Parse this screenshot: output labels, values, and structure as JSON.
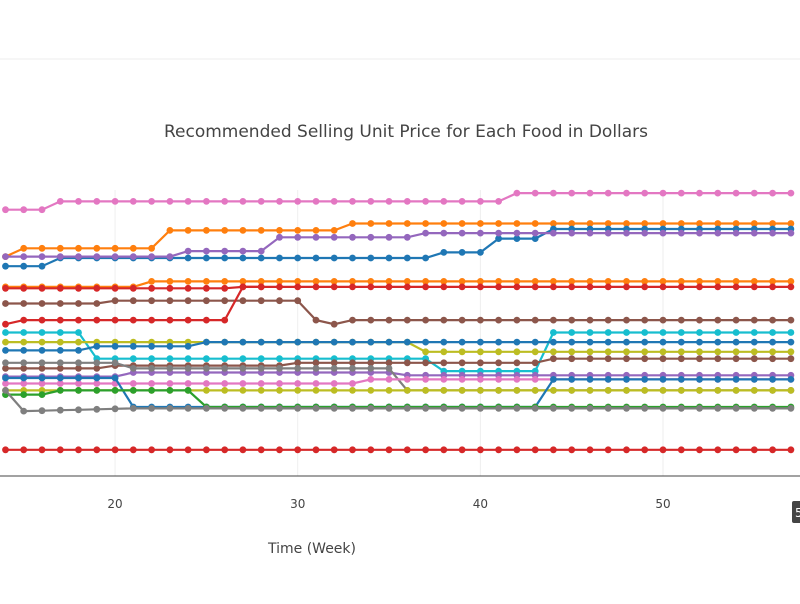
{
  "chart_data": {
    "type": "line",
    "title": "Recommended Selling Unit Price for Each Food in Dollars",
    "xlabel": "Time (Week)",
    "ylabel": "",
    "x_ticks": [
      20,
      30,
      40,
      50
    ],
    "xlim": [
      13.7,
      57.5
    ],
    "ylim": [
      0,
      100
    ],
    "grid": true,
    "hover_label": "5",
    "colors": {
      "blue": "#1f77b4",
      "orange": "#ff7f0e",
      "green": "#2ca02c",
      "red": "#d62728",
      "purple": "#9467bd",
      "brown": "#8c564b",
      "pink": "#e377c2",
      "gray": "#7f7f7f",
      "olive": "#bcbd22",
      "cyan": "#17becf"
    },
    "series": [
      {
        "color": "pink",
        "segments": [
          [
            14,
            96.5
          ],
          [
            16,
            96.5
          ],
          [
            17,
            99.5
          ],
          [
            41,
            99.5
          ],
          [
            42,
            102.5
          ],
          [
            57,
            102.5
          ]
        ]
      },
      {
        "color": "orange",
        "segments": [
          [
            14,
            79.5
          ],
          [
            15,
            82.5
          ],
          [
            22,
            82.5
          ],
          [
            23,
            89
          ],
          [
            32,
            89
          ],
          [
            33,
            91.5
          ],
          [
            57,
            91.5
          ]
        ]
      },
      {
        "color": "blue",
        "segments": [
          [
            14,
            76
          ],
          [
            16,
            76
          ],
          [
            17,
            79
          ],
          [
            37,
            79
          ],
          [
            38,
            81
          ],
          [
            40,
            81
          ],
          [
            41,
            86
          ],
          [
            43,
            86
          ],
          [
            44,
            89.5
          ],
          [
            57,
            89.5
          ]
        ]
      },
      {
        "color": "purple",
        "segments": [
          [
            14,
            79.5
          ],
          [
            23,
            79.5
          ],
          [
            24,
            81.5
          ],
          [
            28,
            81.5
          ],
          [
            29,
            86.5
          ],
          [
            36,
            86.5
          ],
          [
            37,
            88
          ],
          [
            57,
            88
          ]
        ]
      },
      {
        "color": "orange",
        "segments": [
          [
            14,
            68.5
          ],
          [
            21,
            68.5
          ],
          [
            22,
            70.5
          ],
          [
            57,
            70.5
          ]
        ]
      },
      {
        "color": "red",
        "segments": [
          [
            14,
            68
          ],
          [
            26,
            68
          ],
          [
            27,
            68.5
          ],
          [
            57,
            68.5
          ]
        ]
      },
      {
        "color": "brown",
        "segments": [
          [
            14,
            62.5
          ],
          [
            19,
            62.5
          ],
          [
            20,
            63.5
          ],
          [
            30,
            63.5
          ],
          [
            31,
            56.5
          ],
          [
            32,
            55
          ],
          [
            33,
            56.5
          ],
          [
            57,
            56.5
          ]
        ]
      },
      {
        "color": "red",
        "segments": [
          [
            14,
            55
          ],
          [
            15,
            56.5
          ],
          [
            26,
            56.5
          ],
          [
            27,
            68.5
          ],
          [
            28,
            68.5
          ]
        ]
      },
      {
        "color": "cyan",
        "segments": [
          [
            14,
            52
          ],
          [
            18,
            52
          ],
          [
            19,
            42.5
          ],
          [
            37,
            42.5
          ],
          [
            38,
            38
          ],
          [
            43,
            38
          ],
          [
            44,
            52
          ],
          [
            57,
            52
          ]
        ]
      },
      {
        "color": "olive",
        "segments": [
          [
            14,
            48.5
          ],
          [
            36,
            48.5
          ],
          [
            37,
            45
          ],
          [
            44,
            45
          ],
          [
            57,
            45
          ]
        ]
      },
      {
        "color": "blue",
        "segments": [
          [
            14,
            45.5
          ],
          [
            18,
            45.5
          ],
          [
            19,
            47
          ],
          [
            24,
            47
          ],
          [
            25,
            48.5
          ],
          [
            57,
            48.5
          ]
        ]
      },
      {
        "color": "brown",
        "segments": [
          [
            14,
            39
          ],
          [
            19,
            39
          ],
          [
            20,
            40
          ],
          [
            29,
            40
          ],
          [
            30,
            41
          ],
          [
            43,
            41
          ],
          [
            44,
            42.5
          ],
          [
            57,
            42.5
          ]
        ]
      },
      {
        "color": "purple",
        "segments": [
          [
            14,
            36
          ],
          [
            20,
            36
          ],
          [
            21,
            37.5
          ],
          [
            35,
            37.5
          ],
          [
            36,
            36.5
          ],
          [
            57,
            36.5
          ]
        ]
      },
      {
        "color": "gray",
        "segments": [
          [
            14,
            41
          ],
          [
            20,
            41
          ],
          [
            21,
            39
          ],
          [
            35,
            39
          ],
          [
            36,
            31
          ],
          [
            57,
            31
          ]
        ]
      },
      {
        "color": "pink",
        "segments": [
          [
            14,
            33.5
          ],
          [
            33,
            33.5
          ],
          [
            34,
            35
          ],
          [
            57,
            35
          ]
        ]
      },
      {
        "color": "olive",
        "segments": [
          [
            14,
            31
          ],
          [
            57,
            31
          ]
        ]
      },
      {
        "color": "blue",
        "segments": [
          [
            14,
            35.5
          ],
          [
            20,
            35.5
          ],
          [
            21,
            25
          ],
          [
            43,
            25
          ],
          [
            44,
            35
          ],
          [
            57,
            35
          ]
        ]
      },
      {
        "color": "green",
        "segments": [
          [
            14,
            29.5
          ],
          [
            16,
            29.5
          ],
          [
            17,
            31
          ],
          [
            24,
            31
          ],
          [
            25,
            25
          ],
          [
            57,
            25
          ]
        ]
      },
      {
        "color": "gray",
        "segments": [
          [
            14,
            31
          ],
          [
            15,
            23.5
          ],
          [
            21,
            24.5
          ],
          [
            57,
            24.5
          ]
        ]
      },
      {
        "color": "red",
        "segments": [
          [
            14,
            9.5
          ],
          [
            57,
            9.5
          ]
        ]
      }
    ]
  }
}
